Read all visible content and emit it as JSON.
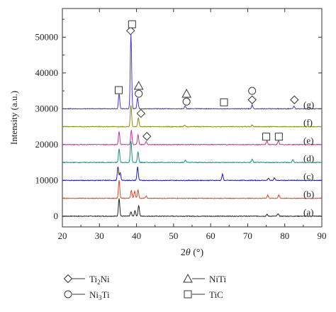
{
  "chart_data": {
    "type": "line",
    "xlabel": "2θ (°)",
    "ylabel": "Intensity (a.u.)",
    "xlim": [
      20,
      90
    ],
    "ylim": [
      -3000,
      58000
    ],
    "x_ticks": [
      20,
      30,
      40,
      50,
      60,
      70,
      80,
      90
    ],
    "y_ticks": [
      0,
      10000,
      20000,
      30000,
      40000,
      50000
    ],
    "grid": false,
    "legend_position": "below-plot",
    "series": [
      {
        "name": "(a)",
        "color": "#222222",
        "baseline": 0,
        "peaks": [
          [
            35.3,
            5000
          ],
          [
            38.5,
            1200
          ],
          [
            39.6,
            1500
          ],
          [
            40.6,
            3000
          ],
          [
            78.2,
            700
          ],
          [
            75.2,
            500
          ]
        ]
      },
      {
        "name": "(b)",
        "color": "#d9472b",
        "baseline": 5000,
        "peaks": [
          [
            35.3,
            5000
          ],
          [
            38.6,
            2200
          ],
          [
            39.5,
            2000
          ],
          [
            40.4,
            2400
          ],
          [
            42.6,
            600
          ],
          [
            75.4,
            900
          ],
          [
            78.4,
            900
          ]
        ]
      },
      {
        "name": "(c)",
        "color": "#1f1fa8",
        "baseline": 10000,
        "peaks": [
          [
            35.0,
            3800
          ],
          [
            35.6,
            2200
          ],
          [
            40.3,
            3800
          ],
          [
            63.2,
            1700
          ],
          [
            75.6,
            600
          ],
          [
            77.2,
            700
          ]
        ]
      },
      {
        "name": "(d)",
        "color": "#1a8a8c",
        "baseline": 15000,
        "peaks": [
          [
            35.3,
            3800
          ],
          [
            38.5,
            6000
          ],
          [
            40.4,
            3000
          ],
          [
            53.2,
            700
          ],
          [
            71.2,
            900
          ],
          [
            82.2,
            800
          ]
        ]
      },
      {
        "name": "(e)",
        "color": "#c0369a",
        "baseline": 20000,
        "peaks": [
          [
            35.3,
            3600
          ],
          [
            38.6,
            4000
          ],
          [
            40.4,
            2800
          ],
          [
            42.6,
            900
          ],
          [
            75.2,
            1000
          ],
          [
            78.3,
            1000
          ]
        ]
      },
      {
        "name": "(f)",
        "color": "#8a8a1a",
        "baseline": 25000,
        "peaks": [
          [
            38.5,
            6000
          ],
          [
            40.5,
            2500
          ],
          [
            53.0,
            400
          ],
          [
            71.2,
            500
          ]
        ]
      },
      {
        "name": "(g)",
        "color": "#4a38c8",
        "baseline": 30000,
        "peaks": [
          [
            35.3,
            4200
          ],
          [
            38.5,
            21000
          ],
          [
            40.3,
            3000
          ],
          [
            53.1,
            800
          ],
          [
            71.2,
            1100
          ],
          [
            82.5,
            700
          ]
        ]
      }
    ],
    "markers": [
      {
        "symbol": "diamond",
        "x": 38.4,
        "y": 51800
      },
      {
        "symbol": "square",
        "x": 38.8,
        "y": 53600
      },
      {
        "symbol": "square",
        "x": 35.2,
        "y": 35200
      },
      {
        "symbol": "triangle",
        "x": 40.6,
        "y": 36400
      },
      {
        "symbol": "circle",
        "x": 40.6,
        "y": 34200
      },
      {
        "symbol": "diamond",
        "x": 41.2,
        "y": 28700
      },
      {
        "symbol": "diamond",
        "x": 42.8,
        "y": 22300
      },
      {
        "symbol": "triangle",
        "x": 53.5,
        "y": 34200
      },
      {
        "symbol": "circle",
        "x": 53.5,
        "y": 32000
      },
      {
        "symbol": "square",
        "x": 63.6,
        "y": 31800
      },
      {
        "symbol": "circle",
        "x": 71.2,
        "y": 35000
      },
      {
        "symbol": "diamond",
        "x": 71.2,
        "y": 32500
      },
      {
        "symbol": "diamond",
        "x": 82.6,
        "y": 32500
      },
      {
        "symbol": "square",
        "x": 75.0,
        "y": 22200
      },
      {
        "symbol": "square",
        "x": 78.4,
        "y": 22200
      }
    ],
    "legend": [
      {
        "symbol": "diamond",
        "label_main": "Ti",
        "sub1": "2",
        "label_tail": "Ni"
      },
      {
        "symbol": "triangle",
        "label_main": "NiTi",
        "sub1": "",
        "label_tail": ""
      },
      {
        "symbol": "circle",
        "label_main": "Ni",
        "sub1": "3",
        "label_tail": "Ti"
      },
      {
        "symbol": "square",
        "label_main": "TiC",
        "sub1": "",
        "label_tail": ""
      }
    ]
  }
}
